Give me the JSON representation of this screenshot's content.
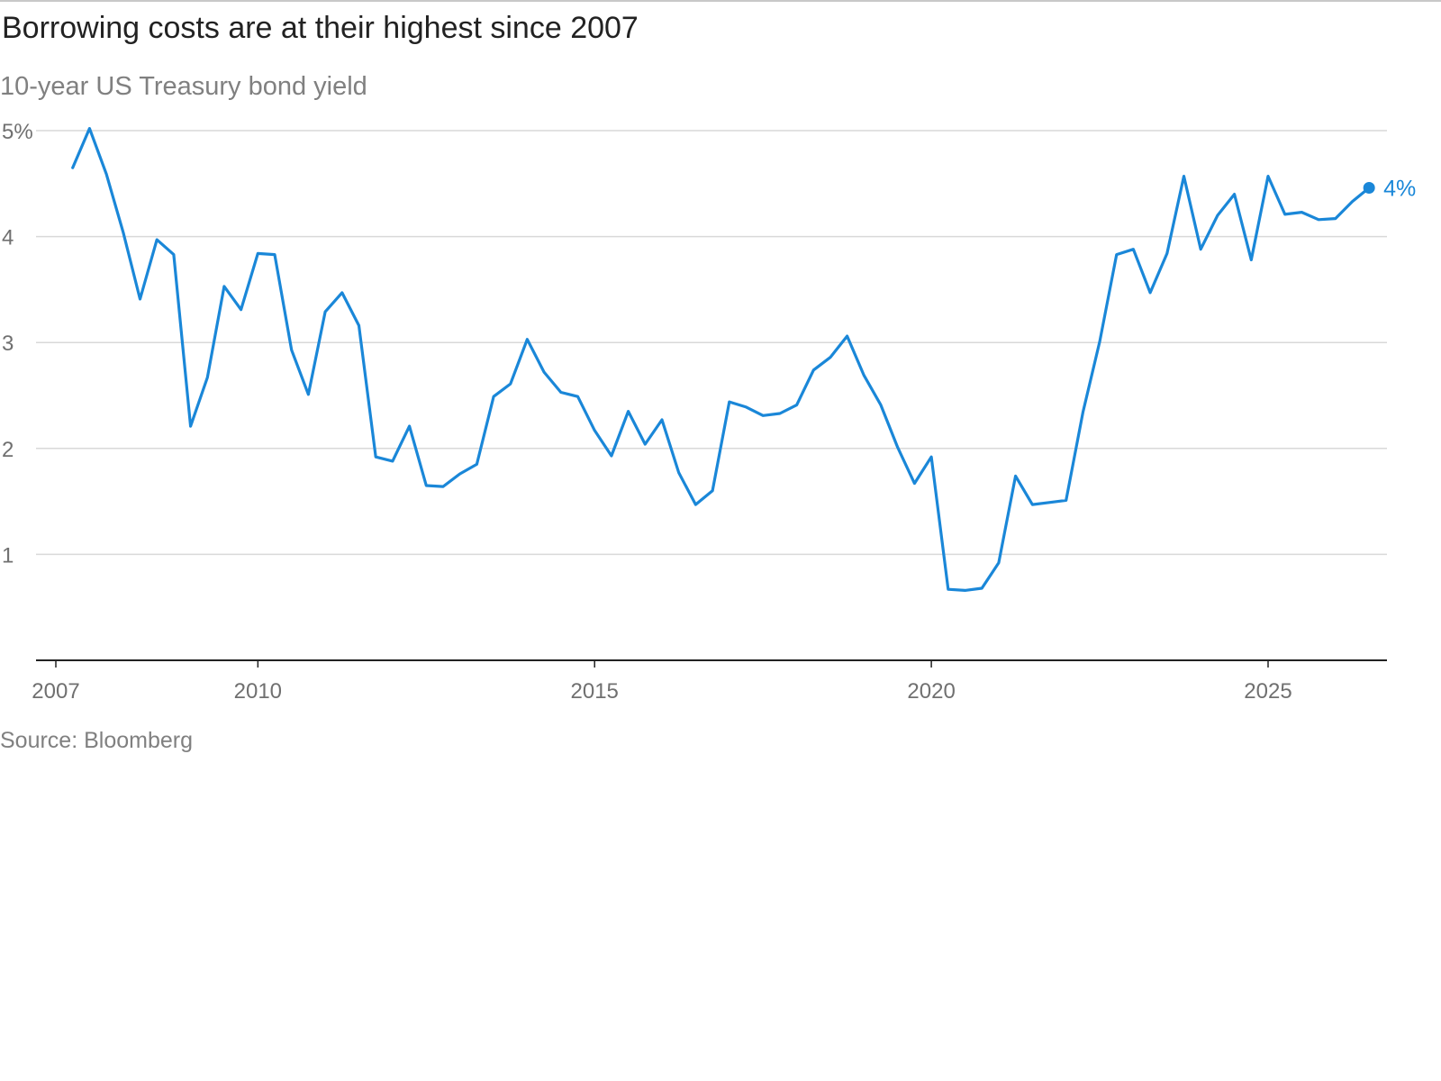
{
  "header": {
    "title": "Borrowing costs are at their highest since 2007",
    "subtitle": "10-year US Treasury bond yield"
  },
  "footer": {
    "source": "Source: Bloomberg"
  },
  "colors": {
    "line": "#1a87d8",
    "grid": "#d9d9d9",
    "axis": "#222222",
    "text_muted": "#808080"
  },
  "chart_data": {
    "type": "line",
    "title": "Borrowing costs are at their highest since 2007",
    "subtitle": "10-year US Treasury bond yield",
    "xlabel": "",
    "ylabel": "",
    "ylim": [
      0,
      5
    ],
    "xlim": [
      2007,
      2026.2
    ],
    "grid": true,
    "y_ticks": [
      {
        "value": 1,
        "label": "1"
      },
      {
        "value": 2,
        "label": "2"
      },
      {
        "value": 3,
        "label": "3"
      },
      {
        "value": 4,
        "label": "4"
      },
      {
        "value": 5,
        "label": "5%"
      }
    ],
    "x_ticks": [
      {
        "value": 2007,
        "label": "2007"
      },
      {
        "value": 2010,
        "label": "2010"
      },
      {
        "value": 2015,
        "label": "2015"
      },
      {
        "value": 2020,
        "label": "2020"
      },
      {
        "value": 2025,
        "label": "2025"
      }
    ],
    "end_label": "4%",
    "series": [
      {
        "x": [
          2007.25,
          2007.5,
          2007.75,
          2008.0,
          2008.25,
          2008.5,
          2008.75,
          2009.0,
          2009.25,
          2009.5,
          2009.75,
          2010.0,
          2010.25,
          2010.5,
          2010.75,
          2011.0,
          2011.25,
          2011.5,
          2011.75,
          2012.0,
          2012.25,
          2012.5,
          2012.75,
          2013.0,
          2013.25,
          2013.5,
          2013.75,
          2014.0,
          2014.25,
          2014.5,
          2014.75,
          2015.0,
          2015.25,
          2015.5,
          2015.75,
          2016.0,
          2016.25,
          2016.5,
          2016.75,
          2017.0,
          2017.25,
          2017.5,
          2017.75,
          2018.0,
          2018.25,
          2018.5,
          2018.75,
          2019.0,
          2019.25,
          2019.5,
          2019.75,
          2020.0,
          2020.25,
          2020.5,
          2020.75,
          2021.0,
          2021.25,
          2021.5,
          2021.75,
          2022.0,
          2022.25,
          2022.5,
          2022.75,
          2023.0,
          2023.25,
          2023.5,
          2023.75,
          2024.0,
          2024.25,
          2024.5,
          2024.75,
          2025.0,
          2025.25,
          2025.5,
          2025.75,
          2026.0,
          2026.25,
          2026.5
        ],
        "values": [
          4.65,
          5.02,
          4.59,
          4.04,
          3.41,
          3.97,
          3.83,
          2.21,
          2.67,
          3.53,
          3.31,
          3.84,
          3.83,
          2.93,
          2.51,
          3.29,
          3.47,
          3.16,
          1.92,
          1.88,
          2.21,
          1.65,
          1.64,
          1.76,
          1.85,
          2.49,
          2.61,
          3.03,
          2.72,
          2.53,
          2.49,
          2.17,
          1.93,
          2.35,
          2.04,
          2.27,
          1.77,
          1.47,
          1.6,
          2.44,
          2.39,
          2.31,
          2.33,
          2.41,
          2.74,
          2.86,
          3.06,
          2.69,
          2.41,
          2.01,
          1.67,
          1.92,
          0.67,
          0.66,
          0.68,
          0.92,
          1.74,
          1.47,
          1.49,
          1.51,
          2.34,
          3.01,
          3.83,
          3.88,
          3.47,
          3.84,
          4.57,
          3.88,
          4.2,
          4.4,
          3.78,
          4.57,
          4.21,
          4.23,
          4.16,
          4.17,
          4.33,
          4.46
        ]
      }
    ]
  }
}
